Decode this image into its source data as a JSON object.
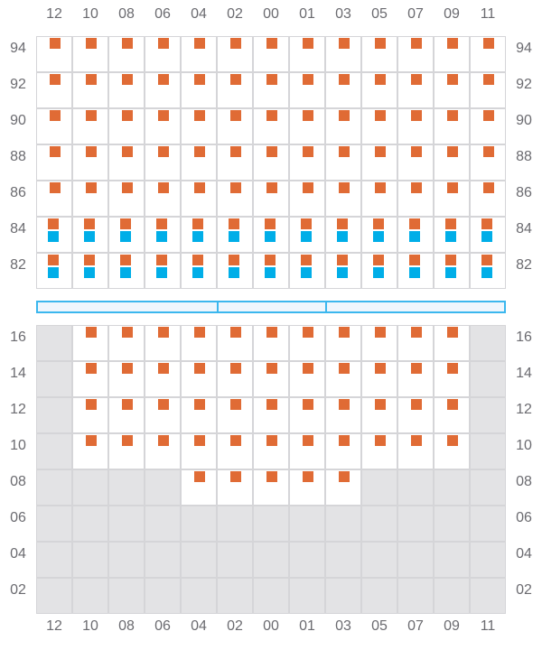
{
  "columns": [
    "12",
    "10",
    "08",
    "06",
    "04",
    "02",
    "00",
    "01",
    "03",
    "05",
    "07",
    "09",
    "11"
  ],
  "colors": {
    "orange": "#e06b35",
    "blue": "#00aee8",
    "disabled": "#e3e3e5",
    "border": "#d5d5d8",
    "bar": "#3bb7ee"
  },
  "legend_codes": {
    "o": "orange marker",
    "ob": "orange + blue markers",
    "e": "empty",
    "x": "disabled"
  },
  "top_section": {
    "rows": [
      {
        "label": "94",
        "slots": [
          "o",
          "o",
          "o",
          "o",
          "o",
          "o",
          "o",
          "o",
          "o",
          "o",
          "o",
          "o",
          "o"
        ]
      },
      {
        "label": "92",
        "slots": [
          "o",
          "o",
          "o",
          "o",
          "o",
          "o",
          "o",
          "o",
          "o",
          "o",
          "o",
          "o",
          "o"
        ]
      },
      {
        "label": "90",
        "slots": [
          "o",
          "o",
          "o",
          "o",
          "o",
          "o",
          "o",
          "o",
          "o",
          "o",
          "o",
          "o",
          "o"
        ]
      },
      {
        "label": "88",
        "slots": [
          "o",
          "o",
          "o",
          "o",
          "o",
          "o",
          "o",
          "o",
          "o",
          "o",
          "o",
          "o",
          "o"
        ]
      },
      {
        "label": "86",
        "slots": [
          "o",
          "o",
          "o",
          "o",
          "o",
          "o",
          "o",
          "o",
          "o",
          "o",
          "o",
          "o",
          "o"
        ]
      },
      {
        "label": "84",
        "slots": [
          "ob",
          "ob",
          "ob",
          "ob",
          "ob",
          "ob",
          "ob",
          "ob",
          "ob",
          "ob",
          "ob",
          "ob",
          "ob"
        ]
      },
      {
        "label": "82",
        "slots": [
          "ob",
          "ob",
          "ob",
          "ob",
          "ob",
          "ob",
          "ob",
          "ob",
          "ob",
          "ob",
          "ob",
          "ob",
          "ob"
        ]
      }
    ]
  },
  "divider_bar": {
    "segments_columns": [
      5,
      3,
      5
    ]
  },
  "bottom_section": {
    "rows": [
      {
        "label": "16",
        "slots": [
          "x",
          "o",
          "o",
          "o",
          "o",
          "o",
          "o",
          "o",
          "o",
          "o",
          "o",
          "o",
          "x"
        ]
      },
      {
        "label": "14",
        "slots": [
          "x",
          "o",
          "o",
          "o",
          "o",
          "o",
          "o",
          "o",
          "o",
          "o",
          "o",
          "o",
          "x"
        ]
      },
      {
        "label": "12",
        "slots": [
          "x",
          "o",
          "o",
          "o",
          "o",
          "o",
          "o",
          "o",
          "o",
          "o",
          "o",
          "o",
          "x"
        ]
      },
      {
        "label": "10",
        "slots": [
          "x",
          "o",
          "o",
          "o",
          "o",
          "o",
          "o",
          "o",
          "o",
          "o",
          "o",
          "o",
          "x"
        ]
      },
      {
        "label": "08",
        "slots": [
          "x",
          "x",
          "x",
          "x",
          "o",
          "o",
          "o",
          "o",
          "o",
          "x",
          "x",
          "x",
          "x"
        ]
      },
      {
        "label": "06",
        "slots": [
          "x",
          "x",
          "x",
          "x",
          "x",
          "x",
          "x",
          "x",
          "x",
          "x",
          "x",
          "x",
          "x"
        ]
      },
      {
        "label": "04",
        "slots": [
          "x",
          "x",
          "x",
          "x",
          "x",
          "x",
          "x",
          "x",
          "x",
          "x",
          "x",
          "x",
          "x"
        ]
      },
      {
        "label": "02",
        "slots": [
          "x",
          "x",
          "x",
          "x",
          "x",
          "x",
          "x",
          "x",
          "x",
          "x",
          "x",
          "x",
          "x"
        ]
      }
    ]
  }
}
